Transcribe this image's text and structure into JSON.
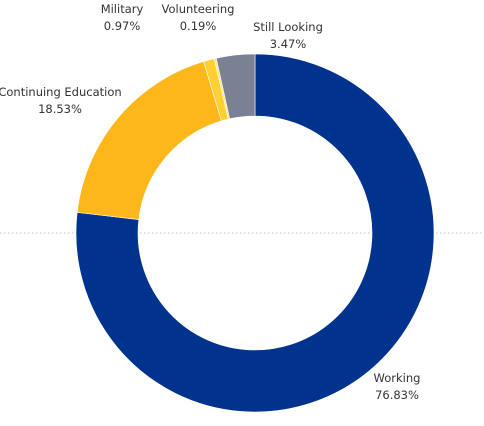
{
  "chart_data": {
    "type": "pie",
    "variant": "donut",
    "title": "",
    "slices": [
      {
        "label": "Working",
        "value": 76.83,
        "display": "76.83%",
        "color": "#00338d"
      },
      {
        "label": "Continuing Education",
        "value": 18.53,
        "display": "18.53%",
        "color": "#fdb71a"
      },
      {
        "label": "Military",
        "value": 0.97,
        "display": "0.97%",
        "color": "#ffd034"
      },
      {
        "label": "Volunteering",
        "value": 0.19,
        "display": "0.19%",
        "color": "#fee27a"
      },
      {
        "label": "Still Looking",
        "value": 3.47,
        "display": "3.47%",
        "color": "#7a8194"
      }
    ],
    "start_angle_deg": 0,
    "direction": "clockwise",
    "legend": "none",
    "grid": false,
    "reference_line": {
      "style": "dotted",
      "color": "#c4c4c4"
    }
  }
}
